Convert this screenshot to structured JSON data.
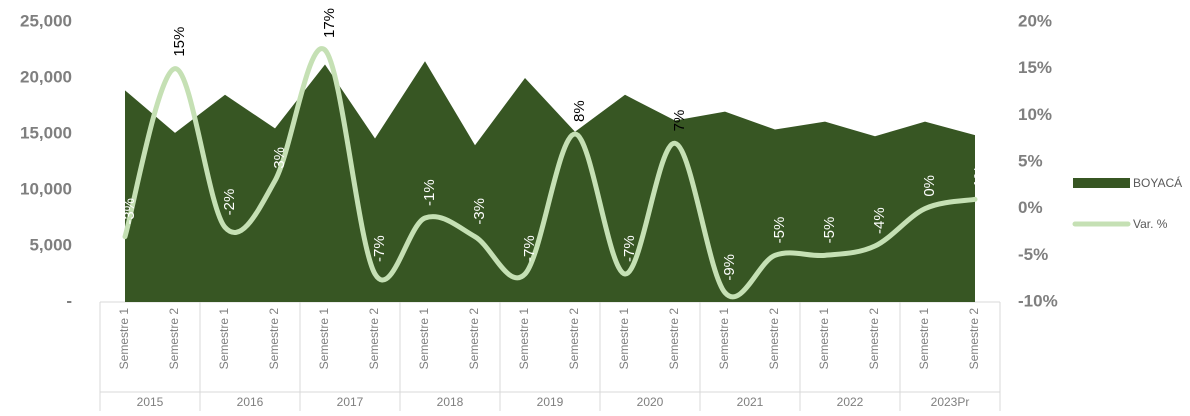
{
  "chart_data": {
    "type": "area_line",
    "groups": [
      "2015",
      "2016",
      "2017",
      "2018",
      "2019",
      "2020",
      "2021",
      "2022",
      "2023Pr"
    ],
    "categories": [
      "Semestre 1",
      "Semestre 2",
      "Semestre 1",
      "Semestre 2",
      "Semestre 1",
      "Semestre 2",
      "Semestre 1",
      "Semestre 2",
      "Semestre 1",
      "Semestre 2",
      "Semestre 1",
      "Semestre 2",
      "Semestre 1",
      "Semestre 2",
      "Semestre 1",
      "Semestre 2",
      "Semestre 1",
      "Semestre 2"
    ],
    "series": [
      {
        "name": "BOYACÁ",
        "type": "area",
        "color": "#375623",
        "values": [
          18900,
          15100,
          18500,
          15500,
          21200,
          14600,
          21500,
          14000,
          20000,
          15200,
          18500,
          16200,
          17000,
          15400,
          16100,
          14800,
          16100,
          14900
        ]
      },
      {
        "name": "Var. %",
        "type": "line",
        "axis": "y2",
        "color": "#c5e0b4",
        "values": [
          -3,
          15,
          -2,
          3,
          17,
          -7,
          -1,
          -3,
          -7,
          8,
          -7,
          7,
          -9,
          -5,
          -5,
          -4,
          0,
          1
        ],
        "value_labels": [
          "-3%",
          "15%",
          "-2%",
          "3%",
          "17%",
          "-7%",
          "-1%",
          "-3%",
          "-7%",
          "8%",
          "-7%",
          "7%",
          "-9%",
          "-5%",
          "-5%",
          "-4%",
          "0%",
          "1%"
        ]
      }
    ],
    "ylim": [
      0,
      25000
    ],
    "yticks": [
      {
        "value": 0,
        "label": "-"
      },
      {
        "value": 5000,
        "label": "5,000"
      },
      {
        "value": 10000,
        "label": "10,000"
      },
      {
        "value": 15000,
        "label": "15,000"
      },
      {
        "value": 20000,
        "label": "20,000"
      },
      {
        "value": 25000,
        "label": "25,000"
      }
    ],
    "y2lim": [
      -10,
      20
    ],
    "y2ticks": [
      {
        "value": -10,
        "label": "-10%"
      },
      {
        "value": -5,
        "label": "-5%"
      },
      {
        "value": 0,
        "label": "0%"
      },
      {
        "value": 5,
        "label": "5%"
      },
      {
        "value": 10,
        "label": "10%"
      },
      {
        "value": 15,
        "label": "15%"
      },
      {
        "value": 20,
        "label": "20%"
      }
    ],
    "legend": "right"
  }
}
